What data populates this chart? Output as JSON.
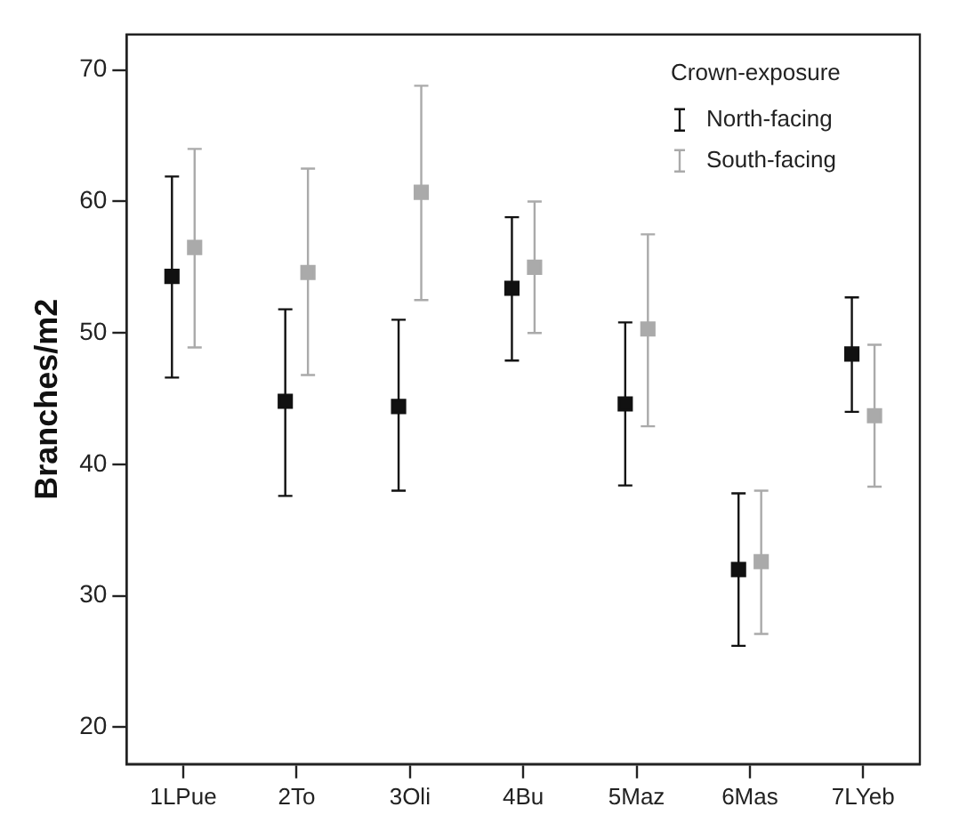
{
  "chart_data": {
    "type": "scatter",
    "ylabel": "Branches/m2",
    "legend_title": "Crown-exposure",
    "legend": "top right",
    "grid": false,
    "marker": "square",
    "categories": [
      "1LPue",
      "2To",
      "3Oli",
      "4Bu",
      "5Maz",
      "6Mas",
      "7LYeb"
    ],
    "ylim": [
      17.2,
      72.7
    ],
    "yticks": [
      20,
      30,
      40,
      50,
      60,
      70
    ],
    "series": [
      {
        "name": "North-facing",
        "color": "#111111",
        "values": [
          54.3,
          44.8,
          44.4,
          53.4,
          44.6,
          32.0,
          48.4
        ],
        "errors": [
          [
            46.6,
            61.9
          ],
          [
            37.6,
            51.8
          ],
          [
            38.0,
            51.0
          ],
          [
            47.9,
            58.8
          ],
          [
            38.4,
            50.8
          ],
          [
            26.2,
            37.8
          ],
          [
            44.0,
            52.7
          ]
        ]
      },
      {
        "name": "South-facing",
        "color": "#aaaaaa",
        "values": [
          56.5,
          54.6,
          60.7,
          55.0,
          50.3,
          32.6,
          43.7
        ],
        "errors": [
          [
            48.9,
            64.0
          ],
          [
            46.8,
            62.5
          ],
          [
            52.5,
            68.8
          ],
          [
            50.0,
            60.0
          ],
          [
            42.9,
            57.5
          ],
          [
            27.1,
            38.0
          ],
          [
            38.3,
            49.1
          ]
        ]
      }
    ]
  }
}
